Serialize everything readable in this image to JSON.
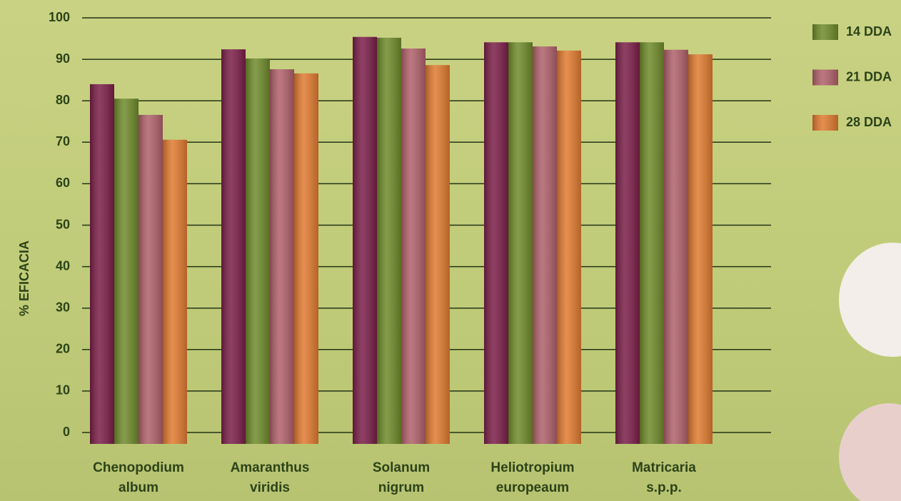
{
  "chart_data": {
    "type": "bar",
    "y_label": "% EFICACIA",
    "categories": [
      "Chenopodium\nalbum",
      "Amaranthus\nviridis",
      "Solanum\nnigrum",
      "Heliotropium\neuropeaum",
      "Matricaria\ns.p.p."
    ],
    "series": [
      {
        "color": "#7a1e48",
        "values": [
          84.0,
          92.4,
          95.4,
          94.1,
          94.1
        ]
      },
      {
        "name": "14 DDA",
        "color": "#6e8a2a",
        "values": [
          80.5,
          90.2,
          95.2,
          94.1,
          94.1
        ]
      },
      {
        "name": "21 DDA",
        "color": "#b0606a",
        "values": [
          76.6,
          87.6,
          92.6,
          93.1,
          92.3
        ]
      },
      {
        "name": "28 DDA",
        "color": "#e07a30",
        "values": [
          70.6,
          86.6,
          88.6,
          92.1,
          91.2
        ]
      }
    ],
    "ylim": [
      0,
      100
    ],
    "yticks": [
      0,
      10,
      20,
      30,
      40,
      50,
      60,
      70,
      80,
      90,
      100
    ],
    "grid": true,
    "legend": "top-right"
  }
}
